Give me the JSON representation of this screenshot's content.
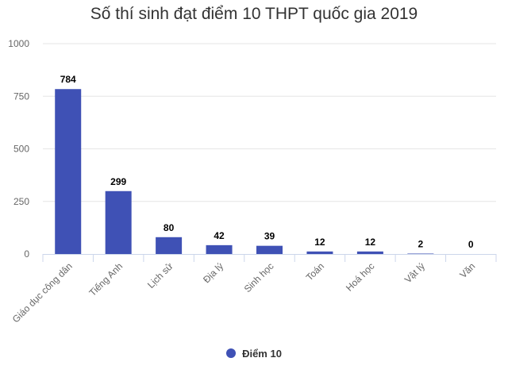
{
  "chart_data": {
    "type": "bar",
    "title": "Số thí sinh đạt điểm 10 THPT quốc gia 2019",
    "xlabel": "",
    "ylabel": "",
    "categories": [
      "Giáo dục công dân",
      "Tiếng Anh",
      "Lịch sử",
      "Địa lý",
      "Sinh học",
      "Toán",
      "Hoá học",
      "Vật lý",
      "Văn"
    ],
    "series": [
      {
        "name": "Điểm 10",
        "values": [
          784,
          299,
          80,
          42,
          39,
          12,
          12,
          2,
          0
        ]
      }
    ],
    "ylim": [
      0,
      1000
    ],
    "yticks": [
      0,
      250,
      500,
      750,
      1000
    ],
    "grid": true,
    "legend_position": "bottom",
    "data_labels": true,
    "colors": {
      "series": "#3f51b5",
      "grid": "#e6e6e6",
      "axis": "#ccd6eb"
    }
  }
}
